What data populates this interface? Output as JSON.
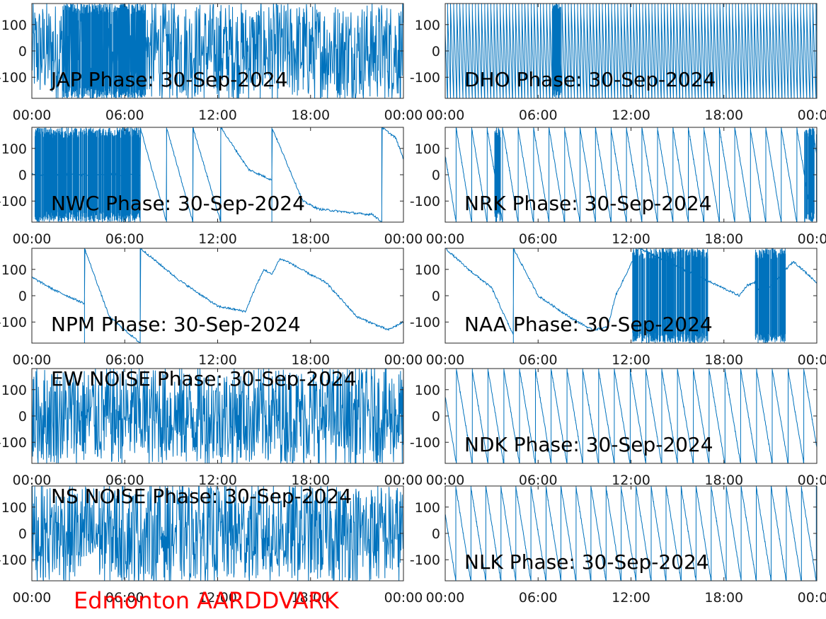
{
  "colors": {
    "trace": "#0072BD",
    "axes": "#262626",
    "footer_text": "#ff0000"
  },
  "footer": {
    "station": "Edmonton AARDDVARK"
  },
  "chart_data": [
    {
      "type": "line",
      "title": "JAP Phase: 30-Sep-2024",
      "ylim": [
        -180,
        180
      ],
      "xlim": [
        0,
        24
      ],
      "yticks": [
        -100,
        0,
        100
      ],
      "yticklabels": [
        "-100",
        "0",
        "100"
      ],
      "xticks": [
        0,
        6,
        12,
        18,
        24
      ],
      "xticklabels": [
        "00:00",
        "06:00",
        "12:00",
        "18:00",
        "00:00"
      ],
      "grid": false,
      "pattern": "noise",
      "x": [
        0,
        24
      ],
      "y": [
        0,
        0
      ],
      "bursts": [
        [
          2.0,
          7.4
        ]
      ]
    },
    {
      "type": "line",
      "title": "DHO Phase: 30-Sep-2024",
      "ylim": [
        -180,
        180
      ],
      "xlim": [
        0,
        24
      ],
      "yticks": [
        -100,
        0,
        100
      ],
      "yticklabels": [
        "-100",
        "0",
        "100"
      ],
      "xticks": [
        0,
        6,
        12,
        18,
        24
      ],
      "xticklabels": [
        "00:00",
        "06:00",
        "12:00",
        "18:00",
        "00:00"
      ],
      "grid": false,
      "pattern": "fast-wrap",
      "wrap_period_h": 0.2,
      "x": [
        0,
        24
      ],
      "y": [
        180,
        -180
      ],
      "bursts": [
        [
          6.9,
          7.5
        ]
      ]
    },
    {
      "type": "line",
      "title": "NWC Phase: 30-Sep-2024",
      "ylim": [
        -180,
        180
      ],
      "xlim": [
        0,
        24
      ],
      "yticks": [
        -100,
        0,
        100
      ],
      "yticklabels": [
        "-100",
        "0",
        "100"
      ],
      "xticks": [
        0,
        6,
        12,
        18,
        24
      ],
      "xticklabels": [
        "00:00",
        "06:00",
        "12:00",
        "18:00",
        "00:00"
      ],
      "grid": false,
      "pattern": "trace",
      "x": [
        0,
        7.0,
        7.0,
        8.7,
        8.7,
        10.4,
        10.4,
        12.2,
        12.2,
        14.0,
        15.5,
        15.5,
        17.5,
        18.5,
        20.0,
        21.5,
        22.0,
        22.6,
        22.6,
        23.5,
        24.0
      ],
      "y": [
        0,
        0,
        180,
        -180,
        180,
        -180,
        180,
        -180,
        180,
        20,
        -20,
        180,
        -100,
        -130,
        -140,
        -150,
        -150,
        -180,
        180,
        140,
        60
      ],
      "bursts": [
        [
          0.2,
          7.0
        ]
      ]
    },
    {
      "type": "line",
      "title": "NRK Phase: 30-Sep-2024",
      "ylim": [
        -180,
        180
      ],
      "xlim": [
        0,
        24
      ],
      "yticks": [
        -100,
        0,
        100
      ],
      "yticklabels": [
        "-100",
        "0",
        "100"
      ],
      "xticks": [
        0,
        6,
        12,
        18,
        24
      ],
      "xticklabels": [
        "00:00",
        "06:00",
        "12:00",
        "18:00",
        "00:00"
      ],
      "grid": false,
      "pattern": "wrap",
      "wrap_period_h": 1.0,
      "x": [
        0,
        24
      ],
      "y": [
        180,
        -180
      ],
      "bursts": [
        [
          3.2,
          3.6
        ],
        [
          23.2,
          24
        ]
      ]
    },
    {
      "type": "line",
      "title": "NPM Phase: 30-Sep-2024",
      "ylim": [
        -180,
        180
      ],
      "xlim": [
        0,
        24
      ],
      "yticks": [
        -100,
        0,
        100
      ],
      "yticklabels": [
        "-100",
        "0",
        "100"
      ],
      "xticks": [
        0,
        6,
        12,
        18,
        24
      ],
      "xticklabels": [
        "00:00",
        "06:00",
        "12:00",
        "18:00",
        "00:00"
      ],
      "grid": false,
      "pattern": "trace",
      "x": [
        0,
        1.5,
        3.4,
        3.4,
        5.0,
        7.0,
        7.0,
        9.5,
        12.0,
        13.8,
        14.5,
        15.0,
        15.5,
        16.0,
        16.5,
        18.0,
        19.0,
        21.0,
        23.0,
        24.0
      ],
      "y": [
        70,
        20,
        -30,
        180,
        -80,
        -180,
        180,
        60,
        -40,
        -60,
        40,
        100,
        80,
        140,
        130,
        80,
        50,
        -80,
        -130,
        -100
      ],
      "bursts": []
    },
    {
      "type": "line",
      "title": "NAA Phase: 30-Sep-2024",
      "ylim": [
        -180,
        180
      ],
      "xlim": [
        0,
        24
      ],
      "yticks": [
        -100,
        0,
        100
      ],
      "yticklabels": [
        "-100",
        "0",
        "100"
      ],
      "xticks": [
        0,
        6,
        12,
        18,
        24
      ],
      "xticklabels": [
        "00:00",
        "06:00",
        "12:00",
        "18:00",
        "00:00"
      ],
      "grid": false,
      "pattern": "trace",
      "x": [
        0,
        1.5,
        3.0,
        4.4,
        4.4,
        6.0,
        8.0,
        9.5,
        10.5,
        11.0,
        12.0,
        12.5,
        19.0,
        19.5,
        20.0,
        20.5,
        22.0,
        22.5,
        24.0
      ],
      "y": [
        180,
        100,
        30,
        -150,
        180,
        0,
        -80,
        -130,
        -120,
        0,
        120,
        180,
        0,
        40,
        50,
        0,
        100,
        130,
        50
      ],
      "bursts": [
        [
          12.1,
          17.0
        ],
        [
          20.0,
          22.0
        ]
      ]
    },
    {
      "type": "line",
      "title": "EW NOISE Phase: 30-Sep-2024",
      "ylim": [
        -180,
        180
      ],
      "xlim": [
        0,
        24
      ],
      "yticks": [
        -100,
        0,
        100
      ],
      "yticklabels": [
        "-100",
        "0",
        "100"
      ],
      "xticks": [
        0,
        6,
        12,
        18,
        24
      ],
      "xticklabels": [
        "00:00",
        "06:00",
        "12:00",
        "18:00",
        "00:00"
      ],
      "grid": false,
      "pattern": "noise",
      "x": [
        0,
        24
      ],
      "y": [
        0,
        0
      ],
      "bursts": []
    },
    {
      "type": "line",
      "title": "NDK Phase: 30-Sep-2024",
      "ylim": [
        -180,
        180
      ],
      "xlim": [
        0,
        24
      ],
      "yticks": [
        -100,
        0,
        100
      ],
      "yticklabels": [
        "-100",
        "0",
        "100"
      ],
      "xticks": [
        0,
        6,
        12,
        18,
        24
      ],
      "xticklabels": [
        "00:00",
        "06:00",
        "12:00",
        "18:00",
        "00:00"
      ],
      "grid": false,
      "pattern": "wrap",
      "wrap_period_h": 1.02,
      "x": [
        0,
        24
      ],
      "y": [
        180,
        -180
      ],
      "bursts": []
    },
    {
      "type": "line",
      "title": "NS NOISE Phase: 30-Sep-2024",
      "ylim": [
        -180,
        180
      ],
      "xlim": [
        0,
        24
      ],
      "yticks": [
        -100,
        0,
        100
      ],
      "yticklabels": [
        "-100",
        "0",
        "100"
      ],
      "xticks": [
        0,
        6,
        12,
        18,
        24
      ],
      "xticklabels": [
        "00:00",
        "06:00",
        "12:00",
        "18:00",
        "00:00"
      ],
      "grid": false,
      "pattern": "noise",
      "x": [
        0,
        24
      ],
      "y": [
        0,
        0
      ],
      "bursts": []
    },
    {
      "type": "line",
      "title": "NLK Phase: 30-Sep-2024",
      "ylim": [
        -180,
        180
      ],
      "xlim": [
        0,
        24
      ],
      "yticks": [
        -100,
        0,
        100
      ],
      "yticklabels": [
        "-100",
        "0",
        "100"
      ],
      "xticks": [
        0,
        6,
        12,
        18,
        24
      ],
      "xticklabels": [
        "00:00",
        "06:00",
        "12:00",
        "18:00",
        "00:00"
      ],
      "grid": false,
      "pattern": "wrap",
      "wrap_period_h": 0.97,
      "x": [
        0,
        24
      ],
      "y": [
        180,
        -180
      ],
      "bursts": []
    }
  ]
}
